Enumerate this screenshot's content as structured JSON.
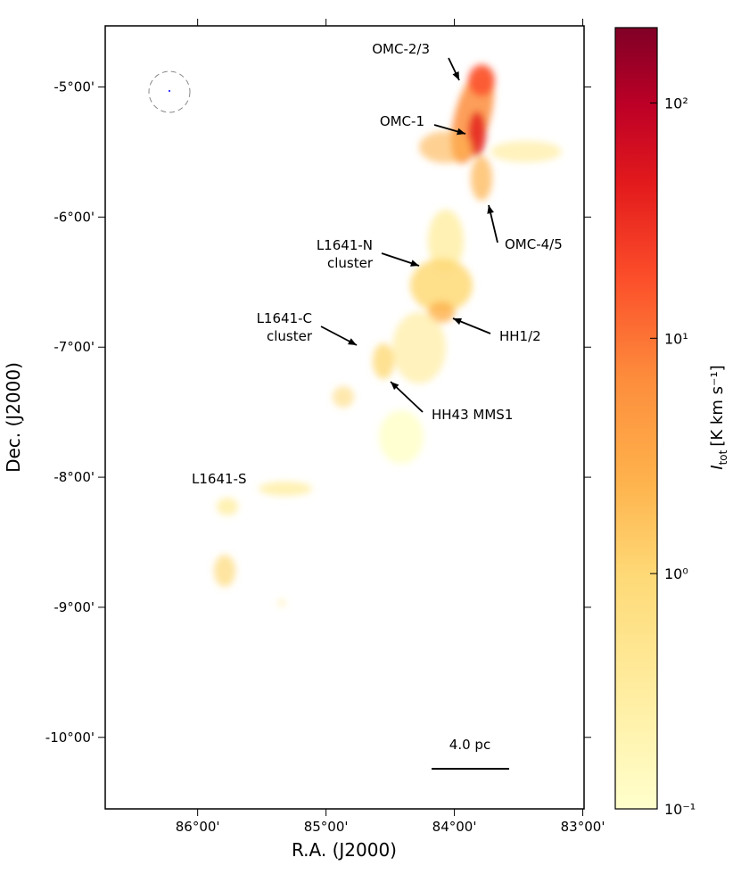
{
  "chart_data": {
    "type": "image",
    "xlabel": "R.A. (J2000)",
    "ylabel": "Dec. (J2000)",
    "xlim": [
      86.72,
      82.99
    ],
    "ylim": [
      -10.55,
      -4.53
    ],
    "xticks": [
      {
        "value": 86,
        "label": "86°00'"
      },
      {
        "value": 85,
        "label": "85°00'"
      },
      {
        "value": 84,
        "label": "84°00'"
      },
      {
        "value": 83,
        "label": "83°00'"
      }
    ],
    "yticks": [
      {
        "value": -5,
        "label": "-5°00'"
      },
      {
        "value": -6,
        "label": "-6°00'"
      },
      {
        "value": -7,
        "label": "-7°00'"
      },
      {
        "value": -8,
        "label": "-8°00'"
      },
      {
        "value": -9,
        "label": "-9°00'"
      },
      {
        "value": -10,
        "label": "-10°00'"
      }
    ],
    "colorbar": {
      "log": true,
      "lim": [
        0.1,
        209
      ],
      "ticks": [
        {
          "value": 0.1,
          "label": "10⁻¹"
        },
        {
          "value": 1,
          "label": "10⁰"
        },
        {
          "value": 10,
          "label": "10¹"
        },
        {
          "value": 100,
          "label": "10²"
        }
      ],
      "label_symbol": "I",
      "label_sub": "tot",
      "label_unit": "[K km s⁻¹]"
    },
    "annotations": [
      "OMC-2/3",
      "OMC-1",
      "OMC-4/5",
      "L1641-N",
      "cluster",
      "HH1/2",
      "L1641-C",
      "cluster",
      "HH43 MMS1",
      "L1641-S"
    ],
    "scale_bar": "4.0 pc"
  }
}
